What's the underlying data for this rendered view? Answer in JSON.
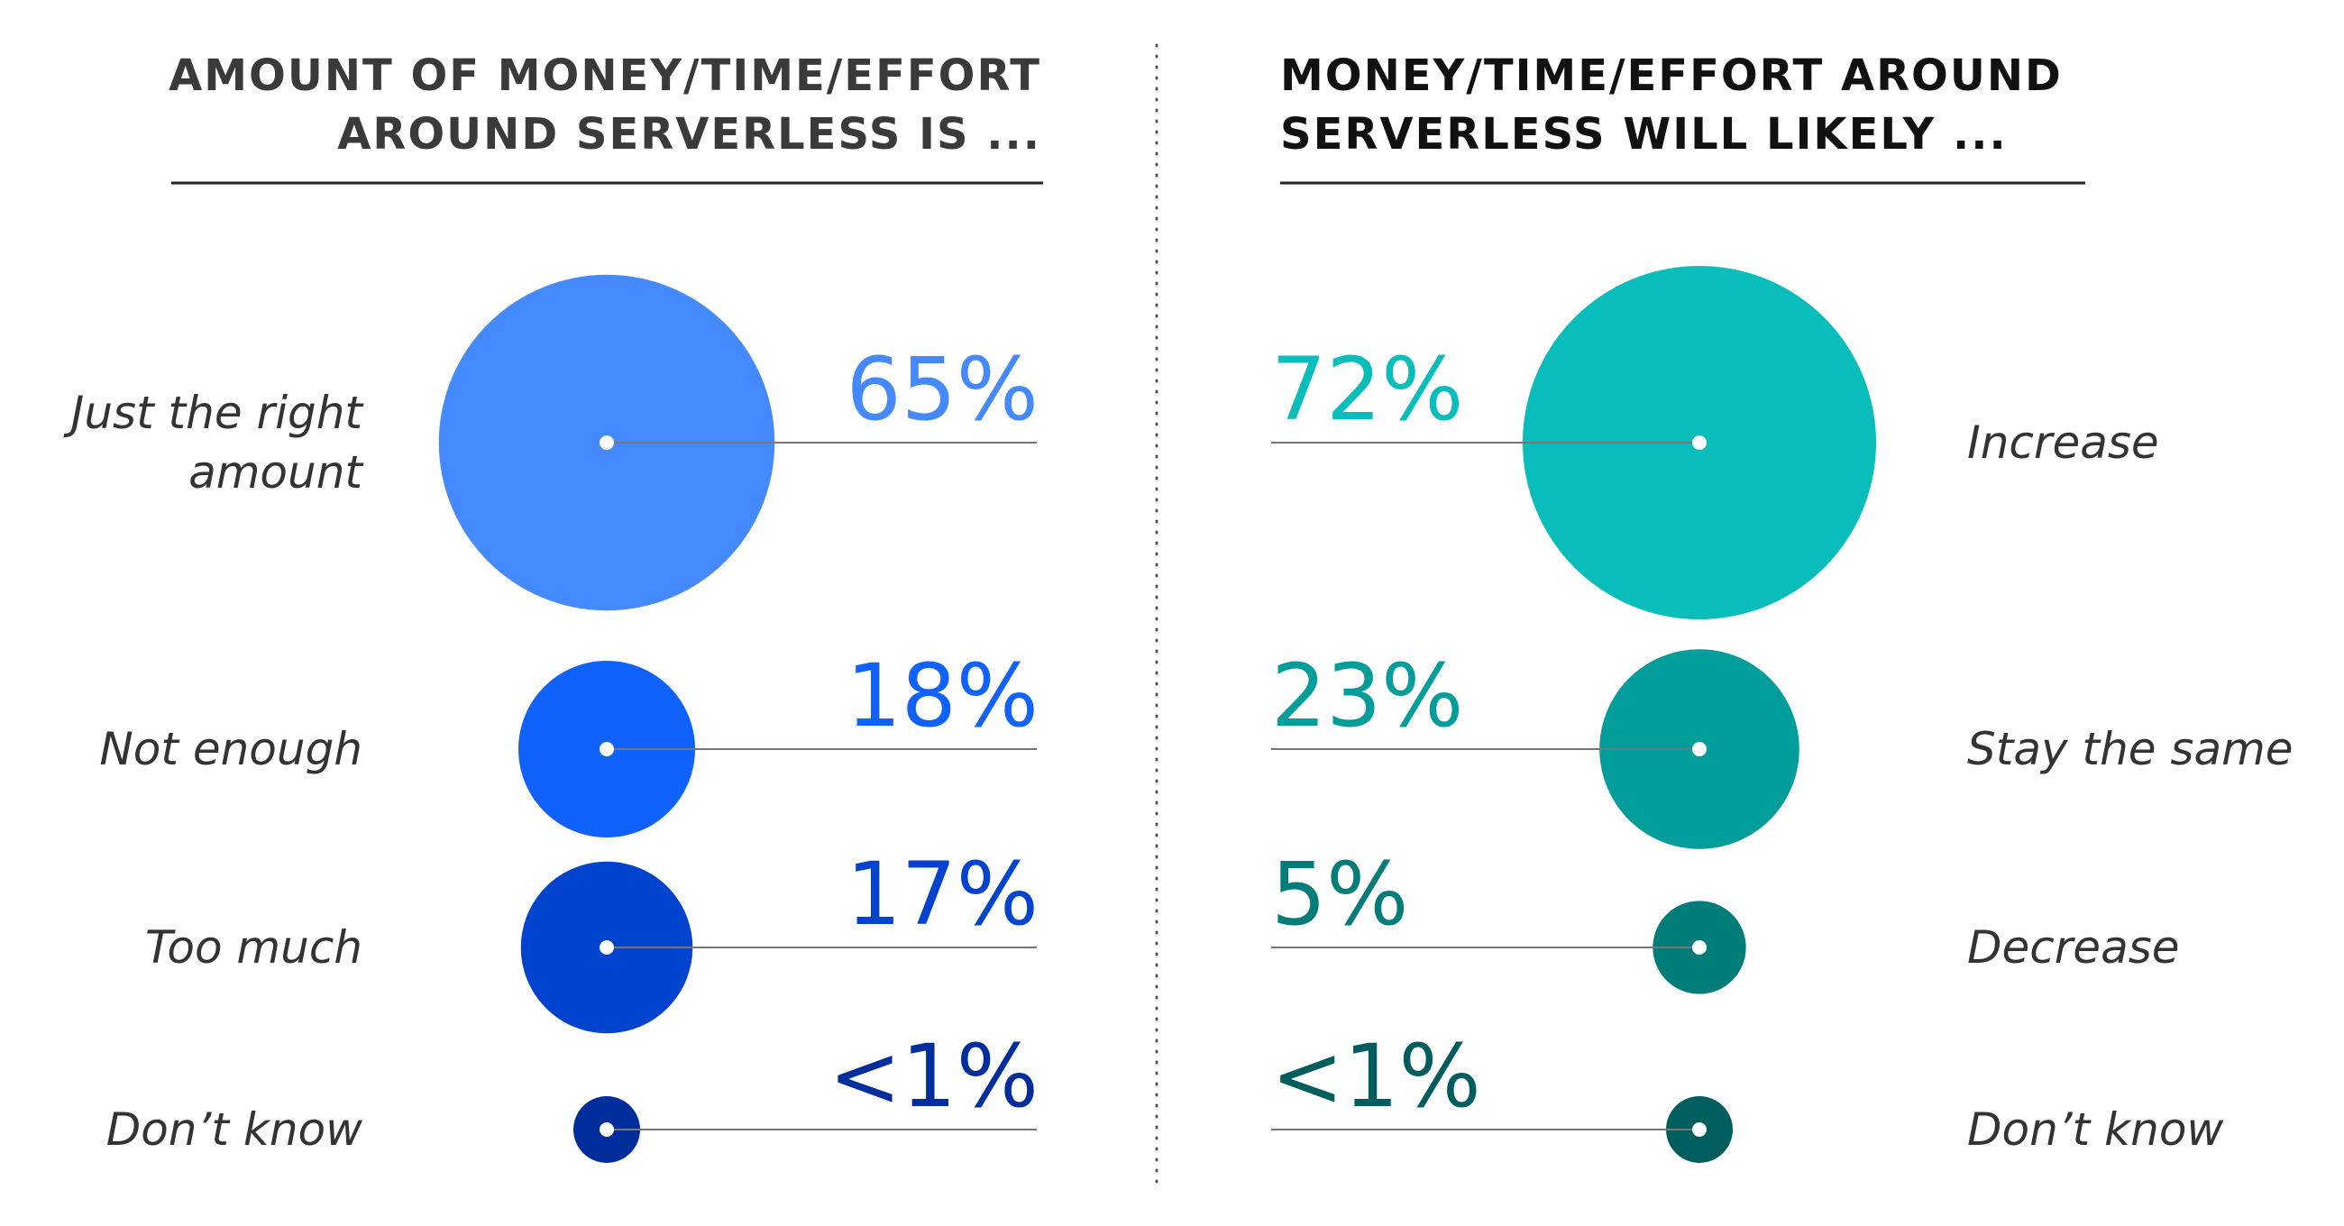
{
  "chart_data": [
    {
      "type": "bubble",
      "title_lines": [
        "AMOUNT OF MONEY/TIME/EFFORT",
        "AROUND SERVERLESS IS ..."
      ],
      "unit": "%",
      "items": [
        {
          "label_lines": [
            "Just the right",
            "amount"
          ],
          "value": 65,
          "value_label": "65%",
          "color": "#4589ff"
        },
        {
          "label_lines": [
            "Not enough"
          ],
          "value": 18,
          "value_label": "18%",
          "color": "#0f62fe"
        },
        {
          "label_lines": [
            "Too much"
          ],
          "value": 17,
          "value_label": "17%",
          "color": "#0043ce"
        },
        {
          "label_lines": [
            "Don’t know"
          ],
          "value": 0.5,
          "value_label": "<1%",
          "color": "#002d9c"
        }
      ]
    },
    {
      "type": "bubble",
      "title_lines": [
        "MONEY/TIME/EFFORT AROUND",
        "SERVERLESS WILL LIKELY ..."
      ],
      "unit": "%",
      "items": [
        {
          "label_lines": [
            "Increase"
          ],
          "value": 72,
          "value_label": "72%",
          "color": "#08bdba"
        },
        {
          "label_lines": [
            "Stay the same"
          ],
          "value": 23,
          "value_label": "23%",
          "color": "#009d9a"
        },
        {
          "label_lines": [
            "Decrease"
          ],
          "value": 5,
          "value_label": "5%",
          "color": "#007d79"
        },
        {
          "label_lines": [
            "Don’t know"
          ],
          "value": 0.5,
          "value_label": "<1%",
          "color": "#005d5d"
        }
      ]
    }
  ],
  "colors": {
    "title_left": "#3a3a3a",
    "title_right": "#111111",
    "rule": "#222222",
    "leader": "#777777",
    "divider": "#555555"
  }
}
